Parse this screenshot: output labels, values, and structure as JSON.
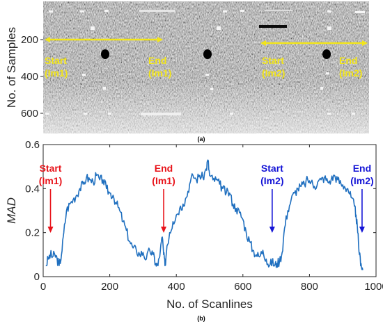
{
  "panel_a": {
    "label": "(a)",
    "ylabel": "No. of Samples",
    "yticks": [
      "200",
      "400",
      "600"
    ],
    "annotations": [
      {
        "text": "Start",
        "sub": "(Im1)"
      },
      {
        "text": "End",
        "sub": "(Im1)"
      },
      {
        "text": "Start",
        "sub": "(Im2)"
      },
      {
        "text": "End",
        "sub": "(Im2)"
      }
    ],
    "annotation_color": "#f2e51a"
  },
  "panel_b": {
    "label": "(b)",
    "annotations": [
      {
        "text": "Start",
        "sub": "(Im1)",
        "x": 22,
        "color": "#e8131a"
      },
      {
        "text": "End",
        "sub": "(Im1)",
        "x": 362,
        "color": "#e8131a"
      },
      {
        "text": "Start",
        "sub": "(Im2)",
        "x": 688,
        "color": "#1414d6"
      },
      {
        "text": "End",
        "sub": "(Im2)",
        "x": 958,
        "color": "#1414d6"
      }
    ]
  },
  "chart_data": {
    "type": "line",
    "title": "",
    "xlabel": "No. of Scanlines",
    "ylabel": "MAD",
    "xlim": [
      0,
      1000
    ],
    "ylim": [
      0,
      0.6
    ],
    "xticks": [
      0,
      200,
      400,
      600,
      800,
      1000
    ],
    "yticks": [
      0,
      0.2,
      0.4,
      0.6
    ],
    "line_color": "#1f6fbf",
    "series": [
      {
        "x": [
          8,
          15,
          22,
          28,
          35,
          42,
          48,
          55,
          62,
          70,
          80,
          90,
          100,
          110,
          120,
          130,
          140,
          150,
          160,
          170,
          180,
          190,
          200,
          210,
          220,
          230,
          240,
          250,
          260,
          270,
          280,
          290,
          300,
          310,
          320,
          330,
          338,
          345,
          352,
          358,
          362,
          366,
          372,
          380,
          390,
          400,
          410,
          420,
          430,
          440,
          450,
          460,
          470,
          480,
          490,
          495,
          500,
          510,
          520,
          530,
          540,
          550,
          560,
          570,
          580,
          590,
          600,
          610,
          620,
          630,
          640,
          650,
          660,
          670,
          680,
          688,
          695,
          702,
          710,
          718,
          725,
          735,
          745,
          755,
          765,
          775,
          785,
          795,
          805,
          815,
          825,
          835,
          845,
          855,
          865,
          875,
          885,
          895,
          905,
          915,
          925,
          935,
          940,
          945,
          950,
          955,
          960
        ],
        "y": [
          0.05,
          0.08,
          0.1,
          0.09,
          0.1,
          0.08,
          0.05,
          0.1,
          0.2,
          0.3,
          0.33,
          0.35,
          0.37,
          0.4,
          0.42,
          0.45,
          0.44,
          0.43,
          0.46,
          0.44,
          0.44,
          0.4,
          0.38,
          0.37,
          0.33,
          0.3,
          0.25,
          0.21,
          0.16,
          0.13,
          0.12,
          0.1,
          0.11,
          0.08,
          0.12,
          0.1,
          0.06,
          0.05,
          0.12,
          0.18,
          0.1,
          0.05,
          0.14,
          0.2,
          0.25,
          0.28,
          0.31,
          0.33,
          0.36,
          0.42,
          0.46,
          0.44,
          0.46,
          0.45,
          0.49,
          0.53,
          0.46,
          0.44,
          0.44,
          0.42,
          0.4,
          0.38,
          0.38,
          0.33,
          0.31,
          0.29,
          0.26,
          0.2,
          0.16,
          0.12,
          0.1,
          0.09,
          0.12,
          0.08,
          0.05,
          0.07,
          0.05,
          0.06,
          0.07,
          0.11,
          0.22,
          0.3,
          0.35,
          0.38,
          0.4,
          0.41,
          0.42,
          0.44,
          0.43,
          0.41,
          0.43,
          0.44,
          0.45,
          0.43,
          0.44,
          0.46,
          0.44,
          0.42,
          0.41,
          0.4,
          0.36,
          0.32,
          0.28,
          0.2,
          0.1,
          0.06,
          0.03
        ]
      }
    ]
  }
}
